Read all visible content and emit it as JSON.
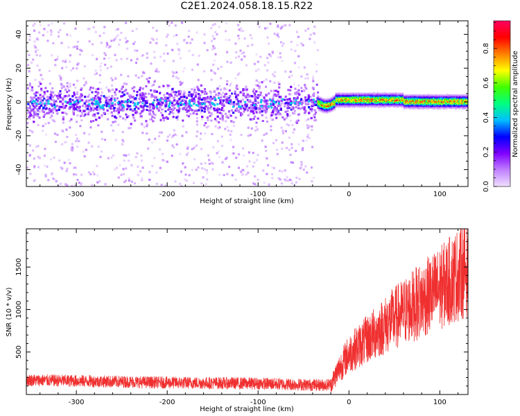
{
  "title": "C2E1.2024.058.18.15.R22",
  "chart_data": [
    {
      "type": "heatmap",
      "xlabel": "Height of straight line (km)",
      "ylabel": "Frequency (Hz)",
      "xlim": [
        -355,
        131
      ],
      "ylim": [
        -50,
        48
      ],
      "x_ticks": [
        -300,
        -200,
        -100,
        0,
        100
      ],
      "y_ticks": [
        -40,
        -20,
        0,
        20,
        40
      ],
      "colorbar": {
        "label": "Normalized spectral amplitude",
        "range": [
          0.0,
          0.96
        ],
        "ticks": [
          0.0,
          0.2,
          0.4,
          0.6,
          0.8
        ],
        "colormap": "rainbow",
        "colors": [
          "#f0e0ff",
          "#c080ff",
          "#8000ff",
          "#0000ff",
          "#00c0ff",
          "#00ff80",
          "#40ff00",
          "#ffff00",
          "#ff8000",
          "#ff0000",
          "#ff0060"
        ]
      },
      "regions": [
        {
          "x_range": [
            -355,
            -35
          ],
          "description_values": {
            "noise_frequency_spread": [
              -50,
              48
            ],
            "core_band": [
              -10,
              10
            ],
            "peak_amplitude": 0.4
          }
        },
        {
          "x_range": [
            -35,
            131
          ],
          "description_values": {
            "signal_band_center": [
              0,
              2
            ],
            "band_halfwidth": 3,
            "peak_amplitude": 0.9
          }
        }
      ]
    },
    {
      "type": "line",
      "series_color": "#f03030",
      "xlabel": "Height of straight line (km)",
      "ylabel": "SNR (10 * v/v)",
      "xlim": [
        -355,
        131
      ],
      "ylim": [
        0,
        1950
      ],
      "x_ticks": [
        -300,
        -200,
        -100,
        0,
        100
      ],
      "y_ticks": [
        500,
        1000,
        1500
      ],
      "trend": {
        "x": [
          -355,
          -300,
          -200,
          -100,
          -30,
          -20,
          -10,
          0,
          50,
          100,
          131
        ],
        "y": [
          170,
          160,
          140,
          130,
          110,
          120,
          320,
          480,
          900,
          1250,
          1500
        ]
      }
    }
  ]
}
